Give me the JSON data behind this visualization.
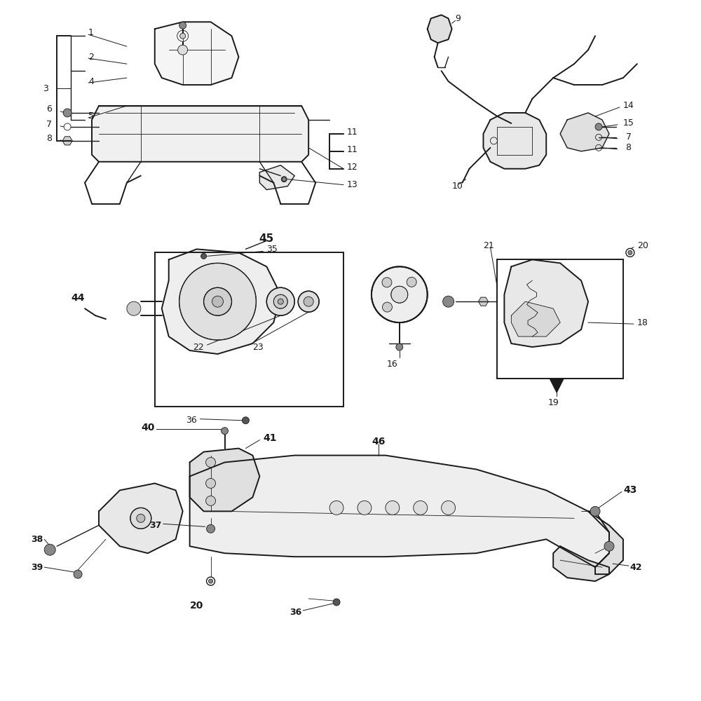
{
  "bg_color": "#ffffff",
  "lc": "#1a1a1a",
  "fig_w": 10,
  "fig_h": 10,
  "lw": 1.0,
  "lw_thin": 0.6,
  "lw_thick": 1.4,
  "label_fs": 9,
  "label_fs_bold": 10
}
